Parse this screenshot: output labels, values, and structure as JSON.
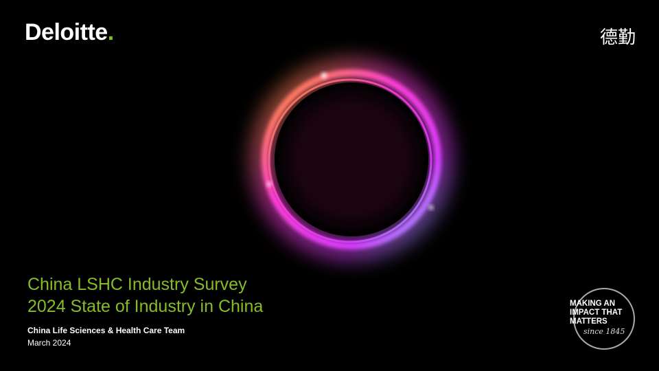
{
  "logo": {
    "name": "Deloitte",
    "dot": "."
  },
  "chinese_name": "德勤",
  "title": {
    "line1": "China LSHC Industry Survey",
    "line2": "2024 State of Industry in China"
  },
  "team": "China Life Sciences & Health Care Team",
  "date": "March 2024",
  "badge": {
    "line1": "MAKING AN",
    "line2": "IMPACT THAT",
    "line3": "MATTERS",
    "since": "since 1845"
  }
}
